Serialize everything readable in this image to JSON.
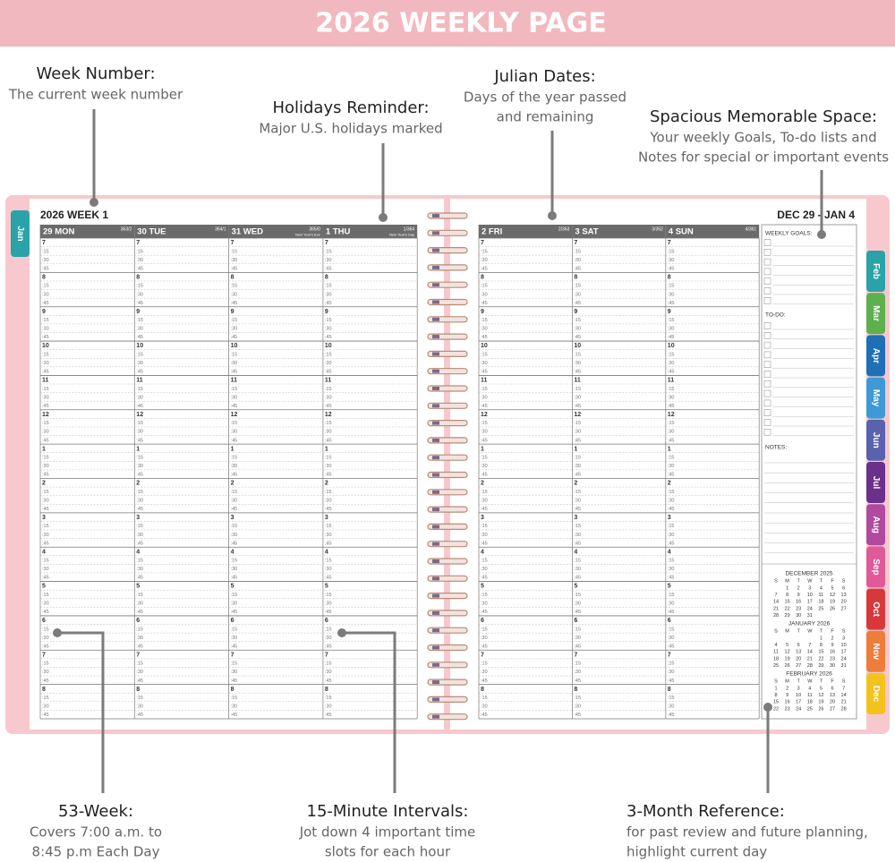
{
  "banner": {
    "title": "2026 WEEKLY PAGE"
  },
  "callouts": [
    {
      "title": "Week Number:",
      "lines": [
        "The current week number"
      ]
    },
    {
      "title": "Holidays Reminder:",
      "lines": [
        "Major U.S. holidays marked"
      ]
    },
    {
      "title": "Julian Dates:",
      "lines": [
        "Days of the year passed",
        "and remaining"
      ]
    },
    {
      "title": "Spacious Memorable Space:",
      "lines": [
        "Your weekly Goals, To-do lists and",
        "Notes for special or important events"
      ]
    },
    {
      "title": "53-Week:",
      "lines": [
        "Covers 7:00 a.m. to",
        "8:45 p.m Each Day"
      ]
    },
    {
      "title": "15-Minute Intervals:",
      "lines": [
        "Jot down 4 important time",
        "slots for each hour"
      ]
    },
    {
      "title": "3-Month Reference:",
      "lines": [
        "for past review and future planning,",
        "highlight current day"
      ]
    }
  ],
  "planner": {
    "week_label": "2026  WEEK 1",
    "range": "DEC 29 - JAN 4",
    "days": [
      {
        "label": "29 MON",
        "julian": "363/2"
      },
      {
        "label": "30 TUE",
        "julian": "364/1"
      },
      {
        "label": "31 WED",
        "julian": "365/0",
        "holiday": "New Year's Eve"
      },
      {
        "label": "1 THU",
        "julian": "1/364",
        "holiday": "New Year's Day"
      },
      {
        "label": "2 FRI",
        "julian": "2/363"
      },
      {
        "label": "3 SAT",
        "julian": "3/362"
      },
      {
        "label": "4 SUN",
        "julian": "4/361"
      }
    ],
    "hours": [
      "7",
      "8",
      "9",
      "10",
      "11",
      "12",
      "1",
      "2",
      "3",
      "4",
      "5",
      "6",
      "7",
      "8"
    ],
    "quarters": [
      ":15",
      ":30",
      ":45"
    ],
    "tabs": [
      {
        "label": "Jan",
        "color": "#2aa3a8"
      },
      {
        "label": "Feb",
        "color": "#2aa3a8"
      },
      {
        "label": "Mar",
        "color": "#5db04e"
      },
      {
        "label": "Apr",
        "color": "#1e6fb8"
      },
      {
        "label": "May",
        "color": "#3d9ad6"
      },
      {
        "label": "Jun",
        "color": "#5b62ad"
      },
      {
        "label": "Jul",
        "color": "#6b2f8c"
      },
      {
        "label": "Aug",
        "color": "#b04a9e"
      },
      {
        "label": "Sep",
        "color": "#e05a9a"
      },
      {
        "label": "Oct",
        "color": "#d9383a"
      },
      {
        "label": "Nov",
        "color": "#ee7d3b"
      },
      {
        "label": "Dec",
        "color": "#f4c21c"
      }
    ],
    "sidebar": {
      "goals": "WEEKLY GOALS:",
      "todo": "TO-DO:",
      "notes": "NOTES:"
    },
    "weekdays": [
      "S",
      "M",
      "T",
      "W",
      "T",
      "F",
      "S"
    ],
    "months": [
      {
        "title": "DECEMBER  2025",
        "weeks": [
          [
            null,
            1,
            2,
            3,
            4,
            5,
            6
          ],
          [
            7,
            8,
            9,
            10,
            11,
            12,
            13
          ],
          [
            14,
            15,
            16,
            17,
            18,
            19,
            20
          ],
          [
            21,
            22,
            23,
            24,
            25,
            26,
            27
          ],
          [
            28,
            29,
            30,
            31,
            null,
            null,
            null
          ]
        ]
      },
      {
        "title": "JANUARY  2026",
        "weeks": [
          [
            null,
            null,
            null,
            null,
            1,
            2,
            3
          ],
          [
            4,
            5,
            6,
            7,
            8,
            9,
            10
          ],
          [
            11,
            12,
            13,
            14,
            15,
            16,
            17
          ],
          [
            18,
            19,
            20,
            21,
            22,
            23,
            24
          ],
          [
            25,
            26,
            27,
            28,
            29,
            30,
            31
          ]
        ]
      },
      {
        "title": "FEBRUARY  2026",
        "weeks": [
          [
            1,
            2,
            3,
            4,
            5,
            6,
            7
          ],
          [
            8,
            9,
            10,
            11,
            12,
            13,
            14
          ],
          [
            15,
            16,
            17,
            18,
            19,
            20,
            21
          ],
          [
            22,
            23,
            24,
            25,
            26,
            27,
            28
          ]
        ]
      }
    ]
  }
}
